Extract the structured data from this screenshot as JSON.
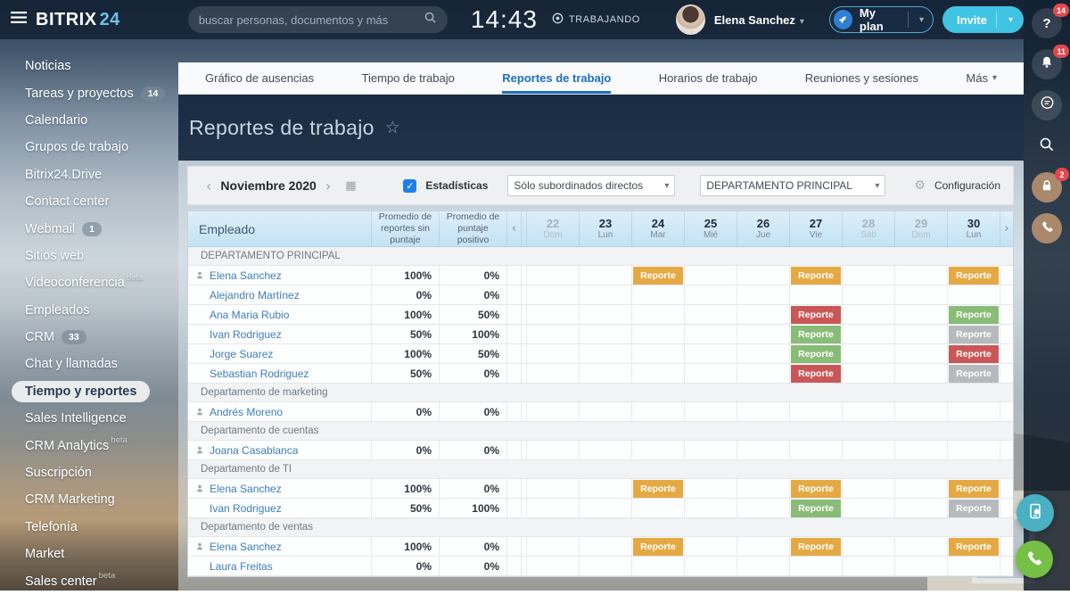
{
  "topbar": {
    "logo_primary": "BITRIX",
    "logo_accent": "24",
    "search_placeholder": "buscar personas, documentos y más",
    "time": "14:43",
    "status_label": "TRABAJANDO",
    "user_name": "Elena Sanchez",
    "plan_label": "My plan",
    "invite_label": "Invite"
  },
  "sidebar": {
    "items": [
      {
        "label": "Noticias"
      },
      {
        "label": "Tareas y proyectos",
        "badge": "14"
      },
      {
        "label": "Calendario"
      },
      {
        "label": "Grupos de trabajo"
      },
      {
        "label": "Bitrix24.Drive"
      },
      {
        "label": "Contact center"
      },
      {
        "label": "Webmail",
        "badge": "1"
      },
      {
        "label": "Sitios web"
      },
      {
        "label": "Videoconferencia",
        "beta": "beta"
      },
      {
        "label": "Empleados"
      },
      {
        "label": "CRM",
        "badge": "33"
      },
      {
        "label": "Chat y llamadas"
      },
      {
        "label": "Tiempo y reportes",
        "active": true
      },
      {
        "label": "Sales Intelligence"
      },
      {
        "label": "CRM Analytics",
        "beta": "beta"
      },
      {
        "label": "Suscripción"
      },
      {
        "label": "CRM Marketing"
      },
      {
        "label": "Telefonía"
      },
      {
        "label": "Market"
      },
      {
        "label": "Sales center",
        "beta": "beta"
      }
    ]
  },
  "tabs": {
    "items": [
      {
        "label": "Gráfico de ausencias"
      },
      {
        "label": "Tiempo de trabajo"
      },
      {
        "label": "Reportes de trabajo",
        "active": true
      },
      {
        "label": "Horarios de trabajo"
      },
      {
        "label": "Reuniones y sesiones"
      },
      {
        "label": "Más",
        "caret": true
      }
    ]
  },
  "page": {
    "title": "Reportes de trabajo"
  },
  "toolbar": {
    "month_label": "Noviembre 2020",
    "stats_label": "Estadísticas",
    "stats_checked": true,
    "filter_subordinates": "Sólo subordinados directos",
    "filter_department": "DEPARTAMENTO PRINCIPAL",
    "settings_label": "Configuración"
  },
  "table": {
    "employee_header": "Empleado",
    "stat_headers": [
      "Promedio de reportes sin puntaje",
      "Promedio de puntaje positivo"
    ],
    "days": [
      {
        "num": "22",
        "name": "Dom",
        "weekend": true
      },
      {
        "num": "23",
        "name": "Lun",
        "weekend": false
      },
      {
        "num": "24",
        "name": "Mar",
        "weekend": false
      },
      {
        "num": "25",
        "name": "Mié",
        "weekend": false
      },
      {
        "num": "26",
        "name": "Jue",
        "weekend": false
      },
      {
        "num": "27",
        "name": "Vie",
        "weekend": false
      },
      {
        "num": "28",
        "name": "Sáb",
        "weekend": true
      },
      {
        "num": "29",
        "name": "Dom",
        "weekend": true
      },
      {
        "num": "30",
        "name": "Lun",
        "weekend": false
      }
    ],
    "badge_label": "Reporte",
    "badge_colors": {
      "yellow": "#e5a944",
      "red": "#ca5757",
      "green": "#89bc77",
      "gray": "#b7babd"
    },
    "rows": [
      {
        "type": "group",
        "label": "DEPARTAMENTO PRINCIPAL"
      },
      {
        "type": "employee",
        "name": "Elena Sanchez",
        "head": true,
        "avg_no_score": "100%",
        "avg_positive": "0%",
        "reports": {
          "24": "yellow",
          "27": "yellow",
          "30": "yellow"
        }
      },
      {
        "type": "employee",
        "name": "Alejandro Martínez",
        "head": false,
        "avg_no_score": "0%",
        "avg_positive": "0%",
        "reports": {}
      },
      {
        "type": "employee",
        "name": "Ana Maria Rubio",
        "head": false,
        "avg_no_score": "100%",
        "avg_positive": "50%",
        "reports": {
          "27": "red",
          "30": "green"
        }
      },
      {
        "type": "employee",
        "name": "Ivan Rodriguez",
        "head": false,
        "avg_no_score": "50%",
        "avg_positive": "100%",
        "reports": {
          "27": "green",
          "30": "gray"
        }
      },
      {
        "type": "employee",
        "name": "Jorge Suarez",
        "head": false,
        "avg_no_score": "100%",
        "avg_positive": "50%",
        "reports": {
          "27": "green",
          "30": "red"
        }
      },
      {
        "type": "employee",
        "name": "Sebastian Rodriguez",
        "head": false,
        "avg_no_score": "50%",
        "avg_positive": "0%",
        "reports": {
          "27": "red",
          "30": "gray"
        }
      },
      {
        "type": "group",
        "label": "Departamento de marketing"
      },
      {
        "type": "employee",
        "name": "Andrés Moreno",
        "head": true,
        "avg_no_score": "0%",
        "avg_positive": "0%",
        "reports": {}
      },
      {
        "type": "group",
        "label": "Departamento de cuentas"
      },
      {
        "type": "employee",
        "name": "Joana Casablanca",
        "head": true,
        "avg_no_score": "0%",
        "avg_positive": "0%",
        "reports": {}
      },
      {
        "type": "group",
        "label": "Departamento de TI"
      },
      {
        "type": "employee",
        "name": "Elena Sanchez",
        "head": true,
        "avg_no_score": "100%",
        "avg_positive": "0%",
        "reports": {
          "24": "yellow",
          "27": "yellow",
          "30": "yellow"
        }
      },
      {
        "type": "employee",
        "name": "Ivan Rodriguez",
        "head": false,
        "avg_no_score": "50%",
        "avg_positive": "100%",
        "reports": {
          "27": "green",
          "30": "gray"
        }
      },
      {
        "type": "group",
        "label": "Departamento de ventas"
      },
      {
        "type": "employee",
        "name": "Elena Sanchez",
        "head": true,
        "avg_no_score": "100%",
        "avg_positive": "0%",
        "reports": {
          "24": "yellow",
          "27": "yellow",
          "30": "yellow"
        }
      },
      {
        "type": "employee",
        "name": "Laura Freitas",
        "head": false,
        "avg_no_score": "0%",
        "avg_positive": "0%",
        "reports": {}
      }
    ]
  },
  "rail": {
    "help_badge": "14",
    "bell_badge": "11",
    "lock_badge": "2"
  },
  "icons": {
    "caret_down": "▾",
    "arrow_left": "‹",
    "arrow_right": "›",
    "star": "☆",
    "gear": "⚙",
    "calendar": "▦",
    "check": "✓",
    "help": "?"
  }
}
